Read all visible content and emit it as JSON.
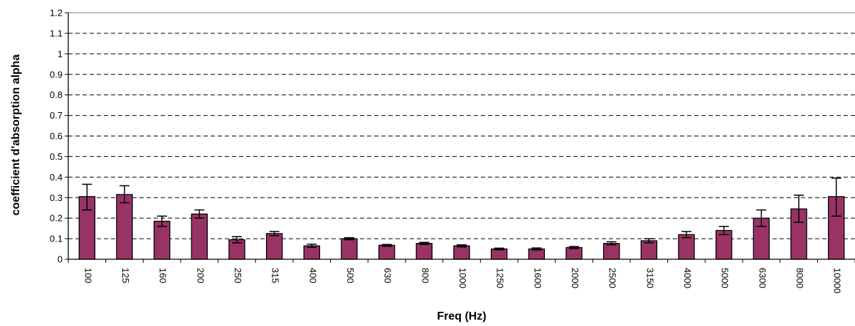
{
  "chart_data": {
    "type": "bar",
    "title": "",
    "xlabel": "Freq (Hz)",
    "ylabel": "coefficient d'absorption alpha",
    "ylim": [
      0,
      1.2
    ],
    "yticks": [
      "0",
      "0.1",
      "0.2",
      "0.3",
      "0.4",
      "0.5",
      "0.6",
      "0.7",
      "0.8",
      "0.9",
      "1",
      "1.1",
      "1.2"
    ],
    "grid": true,
    "bar_color": "#993366",
    "categories": [
      "100",
      "125",
      "160",
      "200",
      "250",
      "315",
      "400",
      "500",
      "630",
      "800",
      "1000",
      "1250",
      "1600",
      "2000",
      "2500",
      "3150",
      "4000",
      "5000",
      "6300",
      "8000",
      "10000"
    ],
    "series": [
      {
        "values": [
          0.305,
          0.315,
          0.185,
          0.22,
          0.095,
          0.125,
          0.065,
          0.1,
          0.068,
          0.077,
          0.065,
          0.05,
          0.05,
          0.057,
          0.077,
          0.09,
          0.12,
          0.14,
          0.2,
          0.245,
          0.305
        ],
        "error_upper": [
          0.365,
          0.358,
          0.21,
          0.24,
          0.11,
          0.135,
          0.073,
          0.105,
          0.072,
          0.082,
          0.07,
          0.054,
          0.055,
          0.062,
          0.085,
          0.1,
          0.135,
          0.16,
          0.24,
          0.312,
          0.395
        ],
        "error_lower": [
          0.24,
          0.275,
          0.16,
          0.2,
          0.08,
          0.115,
          0.058,
          0.095,
          0.063,
          0.072,
          0.06,
          0.046,
          0.045,
          0.052,
          0.07,
          0.08,
          0.105,
          0.12,
          0.16,
          0.18,
          0.21
        ]
      }
    ]
  }
}
